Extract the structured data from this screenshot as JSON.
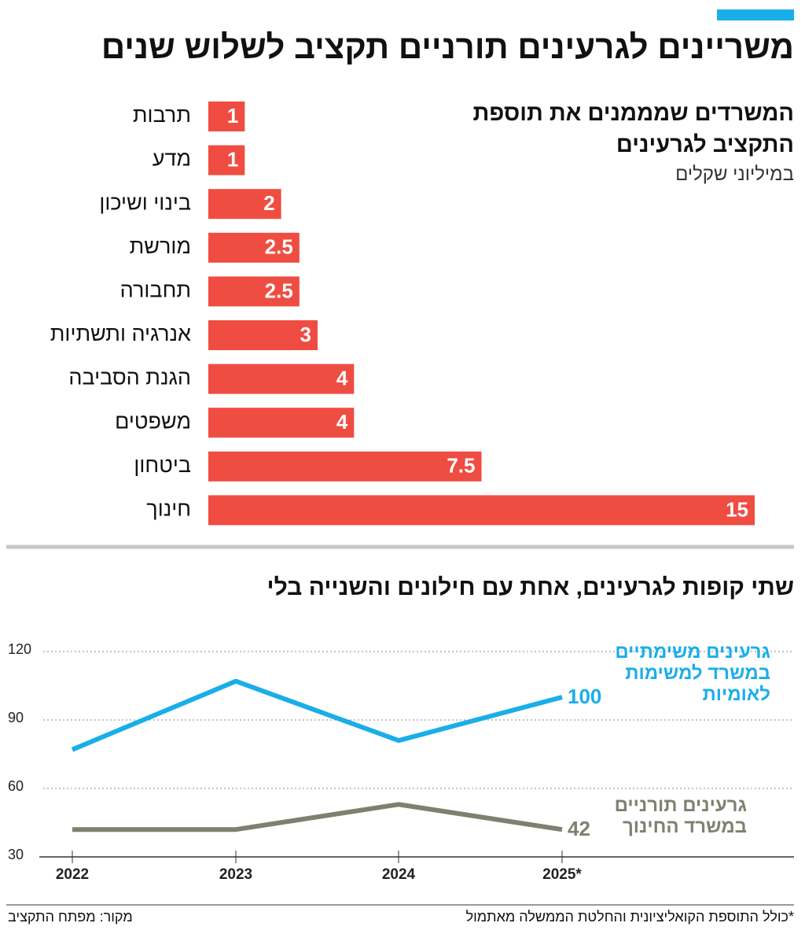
{
  "header": {
    "title": "משריינים לגרעינים תורניים תקציב לשלוש שנים"
  },
  "chart_data": [
    {
      "type": "bar",
      "title": "המשרדים שמממנים את תוספת התקציב לגרעינים",
      "subtitle": "במיליוני שקלים",
      "categories": [
        "תרבות",
        "מדע",
        "בינוי ושיכון",
        "מורשת",
        "תחבורה",
        "אנרגיה ותשתיות",
        "הגנת הסביבה",
        "משפטים",
        "ביטחון",
        "חינוך"
      ],
      "values": [
        1,
        1,
        2,
        2.5,
        2.5,
        3,
        4,
        4,
        7.5,
        15
      ],
      "color": "#ef4d42"
    },
    {
      "type": "line",
      "title": "שתי קופות לגרעינים, אחת עם חילונים והשנייה בלי",
      "categories": [
        "2022",
        "2023",
        "2024",
        "2025*"
      ],
      "series": [
        {
          "name": "גרעינים משימתיים במשרד למשימות לאומיות",
          "color": "#1aaee8",
          "values": [
            77,
            107,
            81,
            100
          ]
        },
        {
          "name": "גרעינים תורניים במשרד החינוך",
          "color": "#7f806f",
          "values": [
            42,
            42,
            53,
            42
          ]
        }
      ],
      "ylim": [
        30,
        120
      ],
      "yticks": [
        30,
        60,
        90,
        120
      ],
      "grid": true
    }
  ],
  "footer": {
    "note": "*כולל התוספת הקואליציונית והחלטת הממשלה מאתמול",
    "source": "מקור: מפתח התקציב"
  }
}
